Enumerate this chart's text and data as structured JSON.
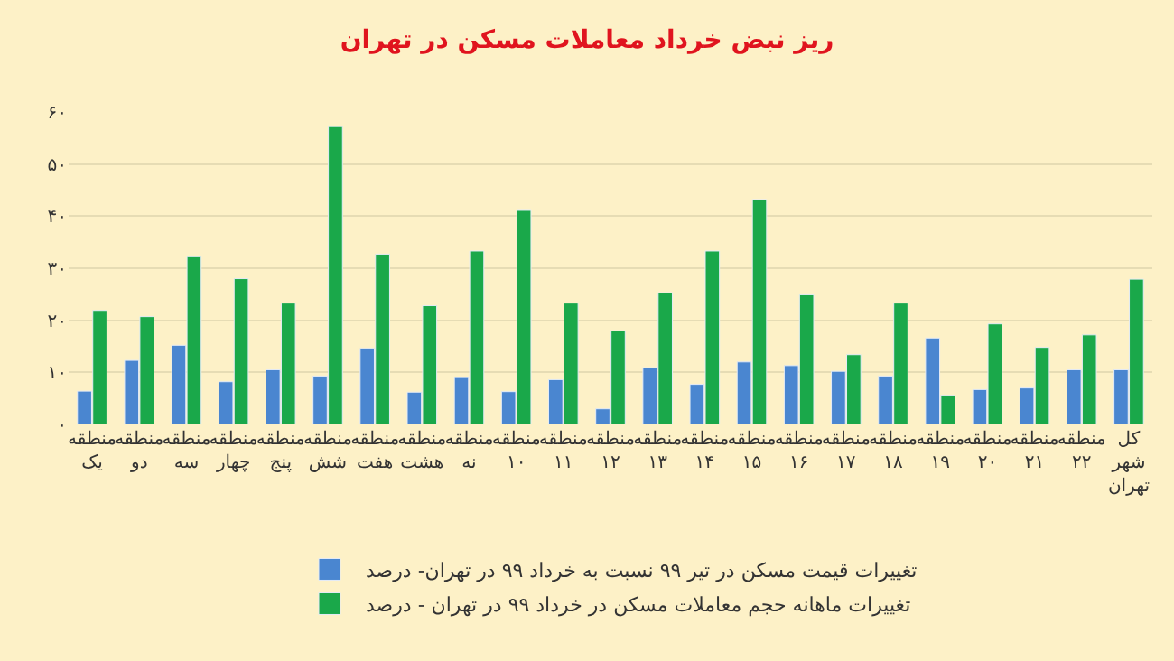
{
  "chart_data": {
    "type": "bar",
    "title": "ریز نبض خرداد معاملات مسکن در تهران",
    "categories": [
      "منطقه\nیک",
      "منطقه\nدو",
      "منطقه\nسه",
      "منطقه\nچهار",
      "منطقه\nپنج",
      "منطقه\nشش",
      "منطقه\nهفت",
      "منطقه\nهشت",
      "منطقه\nنه",
      "منطقه\n۱۰",
      "منطقه\n۱۱",
      "منطقه\n۱۲",
      "منطقه\n۱۳",
      "منطقه\n۱۴",
      "منطقه\n۱۵",
      "منطقه\n۱۶",
      "منطقه\n۱۷",
      "منطقه\n۱۸",
      "منطقه\n۱۹",
      "منطقه\n۲۰",
      "منطقه\n۲۱",
      "منطقه\n۲۲",
      "کل\nشهر\nتهران"
    ],
    "series": [
      {
        "name": "تغییرات قیمت مسکن در تیر ۹۹ نسبت به خرداد ۹۹ در تهران- درصد",
        "color": "#4a86d0",
        "values": [
          6.4,
          12.3,
          15.2,
          8.2,
          10.5,
          9.3,
          14.6,
          6.2,
          9.0,
          6.3,
          8.6,
          3.0,
          10.9,
          7.7,
          12.0,
          11.3,
          10.2,
          9.3,
          16.6,
          6.7,
          7.0,
          10.5,
          10.5
        ]
      },
      {
        "name": "تغییرات ماهانه حجم معاملات مسکن در خرداد ۹۹ در تهران - درصد",
        "color": "#1aa84a",
        "values": [
          21.9,
          20.7,
          32.2,
          28.0,
          23.3,
          57.2,
          32.7,
          22.8,
          33.3,
          41.1,
          23.3,
          18.0,
          25.3,
          33.3,
          43.2,
          24.9,
          13.4,
          23.3,
          5.6,
          19.3,
          14.8,
          17.2,
          27.9
        ]
      }
    ],
    "ylim": [
      0,
      60
    ],
    "yticks": [
      {
        "value": 0,
        "label": "۰"
      },
      {
        "value": 10,
        "label": "۱۰"
      },
      {
        "value": 20,
        "label": "۲۰"
      },
      {
        "value": 30,
        "label": "۳۰"
      },
      {
        "value": 40,
        "label": "۴۰"
      },
      {
        "value": 50,
        "label": "۵۰"
      },
      {
        "value": 60,
        "label": "۶۰"
      }
    ],
    "grid": "y",
    "legend": "bottom"
  }
}
